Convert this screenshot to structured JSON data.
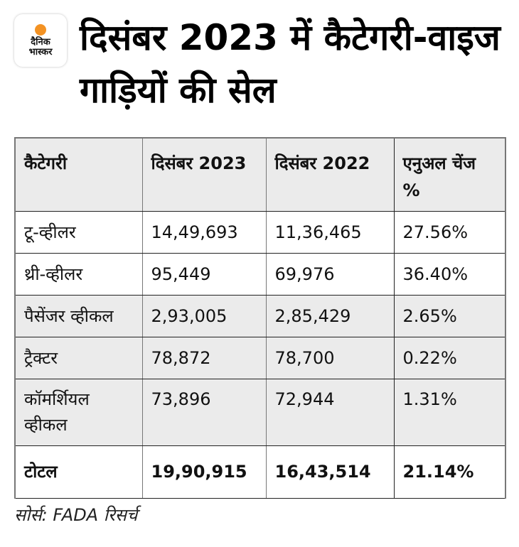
{
  "logo": {
    "line1": "दैनिक",
    "line2": "भास्कर",
    "accent_color": "#f39223"
  },
  "title": "दिसंबर 2023 में कैटेगरी-वाइज गाड़ियों की सेल",
  "table": {
    "headers": [
      "कैटेगरी",
      "दिसंबर 2023",
      "दिसंबर 2022",
      "एनुअल चेंज %"
    ],
    "rows": [
      [
        "टू-व्हीलर",
        "14,49,693",
        "11,36,465",
        "27.56%"
      ],
      [
        "थ्री-व्हीलर",
        "95,449",
        "69,976",
        "36.40%"
      ],
      [
        "पैसेंजर व्हीकल",
        "2,93,005",
        "2,85,429",
        "2.65%"
      ],
      [
        "ट्रैक्टर",
        "78,872",
        "78,700",
        "0.22%"
      ],
      [
        "कॉमर्शियल व्हीकल",
        "73,896",
        "72,944",
        "1.31%"
      ]
    ],
    "total": [
      "टोटल",
      "19,90,915",
      "16,43,514",
      "21.14%"
    ]
  },
  "source": "सोर्स: FADA रिसर्च",
  "colors": {
    "header_bg": "#ebebeb",
    "row_gray_bg": "#ebebeb",
    "text": "#111111"
  }
}
